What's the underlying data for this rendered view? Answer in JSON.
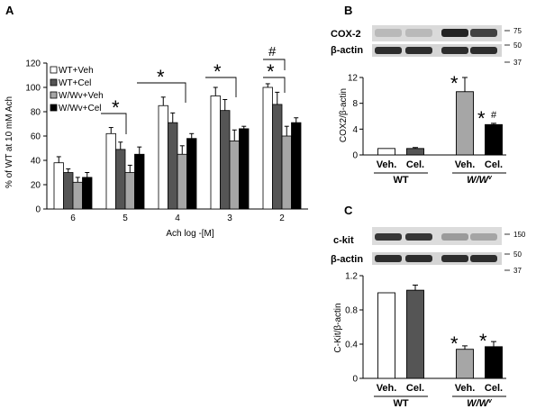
{
  "panels": {
    "a": "A",
    "b": "B",
    "c": "C"
  },
  "colors": {
    "wt_veh": "#ffffff",
    "wt_cel": "#555555",
    "wwv_veh": "#a6a6a6",
    "wwv_cel": "#000000",
    "blot_band": "#1a1a1a",
    "blot_bg": "#d8d8d8"
  },
  "blots_b": {
    "row1_label": "COX-2",
    "row2_label": "β-actin",
    "mw_75": "75",
    "mw_50": "50",
    "mw_37": "37",
    "band_strength_cox2": [
      0.15,
      0.15,
      0.9,
      0.75
    ],
    "band_strength_actin": [
      0.85,
      0.85,
      0.85,
      0.85
    ]
  },
  "blots_c": {
    "row1_label": "c-kit",
    "row2_label": "β-actin",
    "mw_150": "150",
    "mw_50": "50",
    "mw_37": "37",
    "band_strength_ckit": [
      0.8,
      0.8,
      0.3,
      0.25
    ],
    "band_strength_actin": [
      0.85,
      0.85,
      0.85,
      0.85
    ]
  },
  "chart_data": [
    {
      "type": "bar",
      "panel": "A",
      "xlabel": "Ach log -[M]",
      "ylabel": "% of WT at 10 mM Ach",
      "categories": [
        "6",
        "5",
        "4",
        "3",
        "2"
      ],
      "ylim": [
        0,
        120
      ],
      "yticks": [
        "0",
        "20",
        "40",
        "60",
        "80",
        "100",
        "120"
      ],
      "legend_position": "top-left",
      "series": [
        {
          "name": "WT+Veh",
          "values": [
            38,
            62,
            85,
            93,
            100
          ],
          "errors": [
            5,
            5,
            7,
            7,
            3
          ]
        },
        {
          "name": "WT+Cel",
          "values": [
            30,
            49,
            71,
            81,
            86
          ],
          "errors": [
            3,
            6,
            8,
            9,
            10
          ]
        },
        {
          "name": "W/Wv+Veh",
          "values": [
            22,
            30,
            45,
            56,
            60
          ],
          "errors": [
            4,
            6,
            7,
            9,
            8
          ]
        },
        {
          "name": "W/Wv+Cel",
          "values": [
            26,
            45,
            58,
            66,
            71
          ],
          "errors": [
            4,
            6,
            4,
            2,
            4
          ]
        }
      ],
      "annotations": [
        "*",
        "*",
        "*",
        "*",
        "#"
      ]
    },
    {
      "type": "bar",
      "panel": "B",
      "ylabel": "COX2/β-actin",
      "categories": [
        "Veh.",
        "Cel.",
        "Veh.",
        "Cel."
      ],
      "groups": [
        "WT",
        "W/W"
      ],
      "group_superscript": "v",
      "ylim": [
        0,
        12
      ],
      "yticks": [
        "0",
        "4",
        "8",
        "12"
      ],
      "values": [
        1,
        1,
        9.8,
        4.7
      ],
      "errors": [
        0,
        0.15,
        2.2,
        0.2
      ],
      "annotations": [
        "*",
        "*",
        "#"
      ]
    },
    {
      "type": "bar",
      "panel": "C",
      "ylabel": "C-Kit/β-actin",
      "categories": [
        "Veh.",
        "Cel.",
        "Veh.",
        "Cel."
      ],
      "groups": [
        "WT",
        "W/W"
      ],
      "group_superscript": "v",
      "ylim": [
        0,
        1.2
      ],
      "yticks": [
        "0",
        "0.4",
        "0.8",
        "1.2"
      ],
      "values": [
        1.0,
        1.03,
        0.34,
        0.37
      ],
      "errors": [
        0,
        0.06,
        0.04,
        0.06
      ],
      "annotations": [
        "*",
        "*"
      ]
    }
  ]
}
